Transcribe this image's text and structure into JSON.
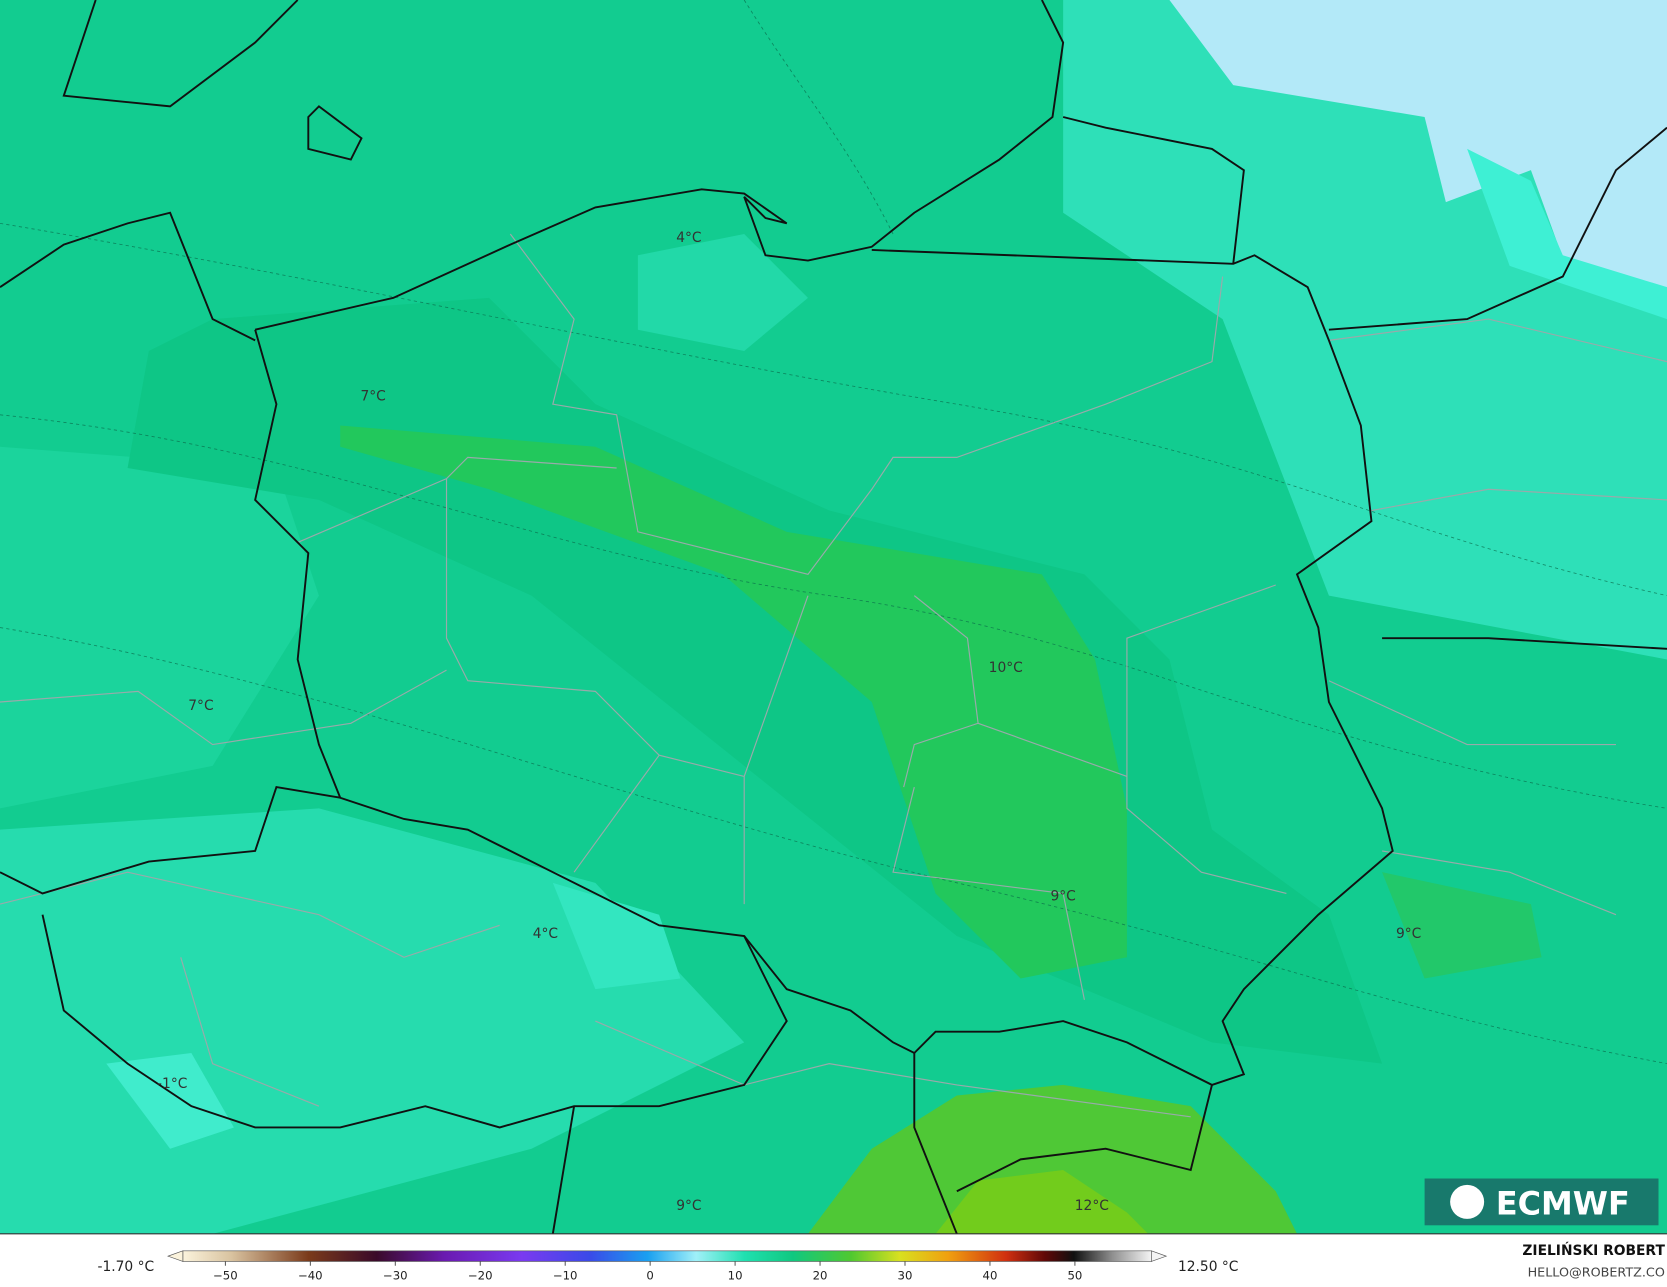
{
  "map": {
    "contour_labels": [
      "4°C",
      "7°C",
      "7°C",
      "10°C",
      "9°C",
      "9°C",
      "4°C",
      "-1°C",
      "9°C",
      "12°C"
    ],
    "logo": "ECMWF"
  },
  "colorbar": {
    "min_label": "-1.70 °C",
    "max_label": "12.50 °C",
    "lim": [
      -55,
      59
    ],
    "ticks": [
      {
        "value": -50,
        "label": "−50"
      },
      {
        "value": -40,
        "label": "−40"
      },
      {
        "value": -30,
        "label": "−30"
      },
      {
        "value": -20,
        "label": "−20"
      },
      {
        "value": -10,
        "label": "−10"
      },
      0,
      10,
      20,
      30,
      40,
      50
    ]
  },
  "credits": {
    "author": "ZIELIŃSKI ROBERT",
    "contact": "HELLO@ROBERTZ.CO"
  }
}
